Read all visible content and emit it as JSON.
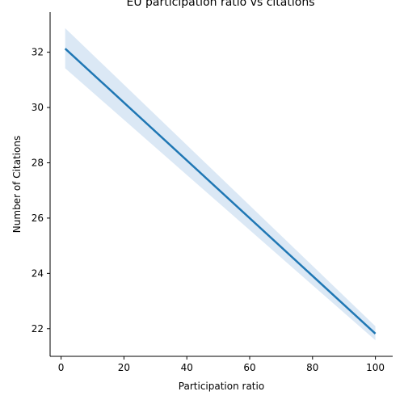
{
  "chart_data": {
    "type": "line",
    "title": "EU participation ratio vs citations",
    "xlabel": "Participation ratio",
    "ylabel": "Number of Citations",
    "xlim": [
      -3.5,
      105.5
    ],
    "ylim": [
      21.0,
      33.45
    ],
    "xticks": [
      0,
      20,
      40,
      60,
      80,
      100
    ],
    "yticks": [
      22,
      24,
      26,
      28,
      30,
      32
    ],
    "grid": false,
    "legend": "none",
    "series": [
      {
        "x": [
          1.3,
          100
        ],
        "y": [
          32.13,
          21.82
        ],
        "ci_lower": [
          31.42,
          21.58
        ],
        "ci_upper": [
          32.87,
          22.09
        ]
      }
    ],
    "colors": {
      "line": "#1f77b4",
      "band": "#cfe0f2"
    }
  }
}
